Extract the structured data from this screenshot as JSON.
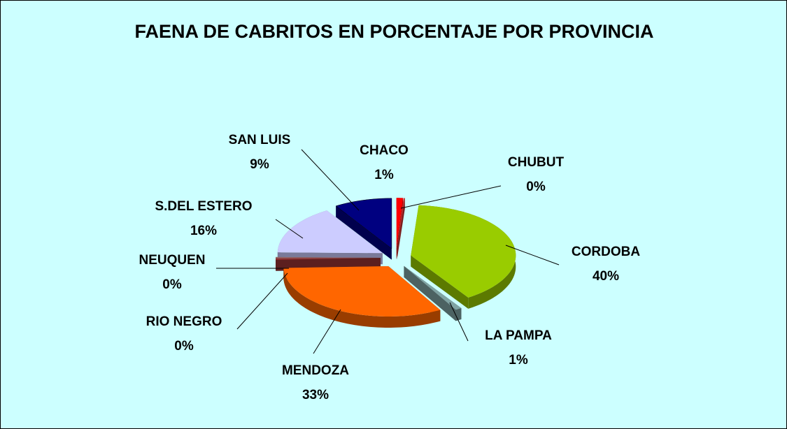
{
  "chart_data": {
    "type": "pie3d",
    "title": "FAENA DE CABRITOS EN PORCENTAJE POR PROVINCIA",
    "categories": [
      "CHACO",
      "CHUBUT",
      "CORDOBA",
      "LA PAMPA",
      "MENDOZA",
      "RIO NEGRO",
      "NEUQUEN",
      "S.DEL ESTERO",
      "SAN LUIS"
    ],
    "values": [
      1,
      0.2,
      40,
      1,
      33,
      0.4,
      0.4,
      16,
      9
    ],
    "value_labels": [
      "1%",
      "0%",
      "40%",
      "1%",
      "33%",
      "0%",
      "0%",
      "16%",
      "9%"
    ],
    "colors": [
      "#ff0000",
      "#cc3333",
      "#99cc00",
      "#7fa3a3",
      "#ff6600",
      "#993333",
      "#996666",
      "#ccccff",
      "#000080"
    ]
  }
}
